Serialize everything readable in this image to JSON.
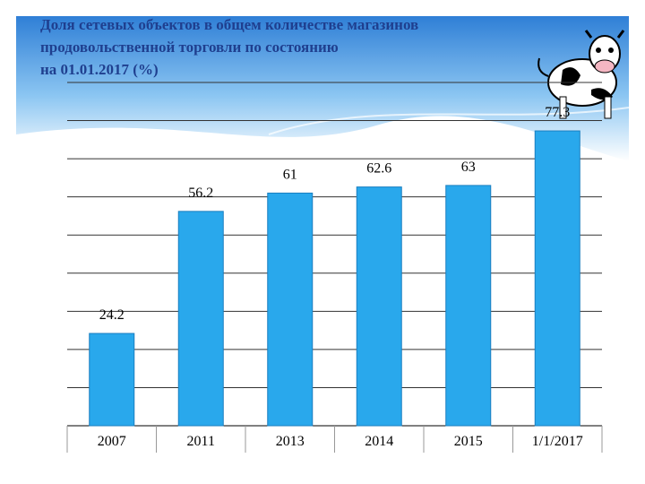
{
  "chart_data": {
    "type": "bar",
    "title": [
      "Доля сетевых объектов в общем количестве магазинов",
      "продовольственной торговли по состоянию",
      "на 01.01.2017 (%)"
    ],
    "categories": [
      "2007",
      "2011",
      "2013",
      "2014",
      "2015",
      "1/1/2017"
    ],
    "values": [
      24.2,
      56.2,
      61,
      62.6,
      63,
      77.3
    ],
    "color": "#29a8ec",
    "ylim": [
      0,
      90
    ],
    "yticks": [
      0,
      10,
      20,
      30,
      40,
      50,
      60,
      70,
      80,
      90
    ],
    "grid": true
  }
}
